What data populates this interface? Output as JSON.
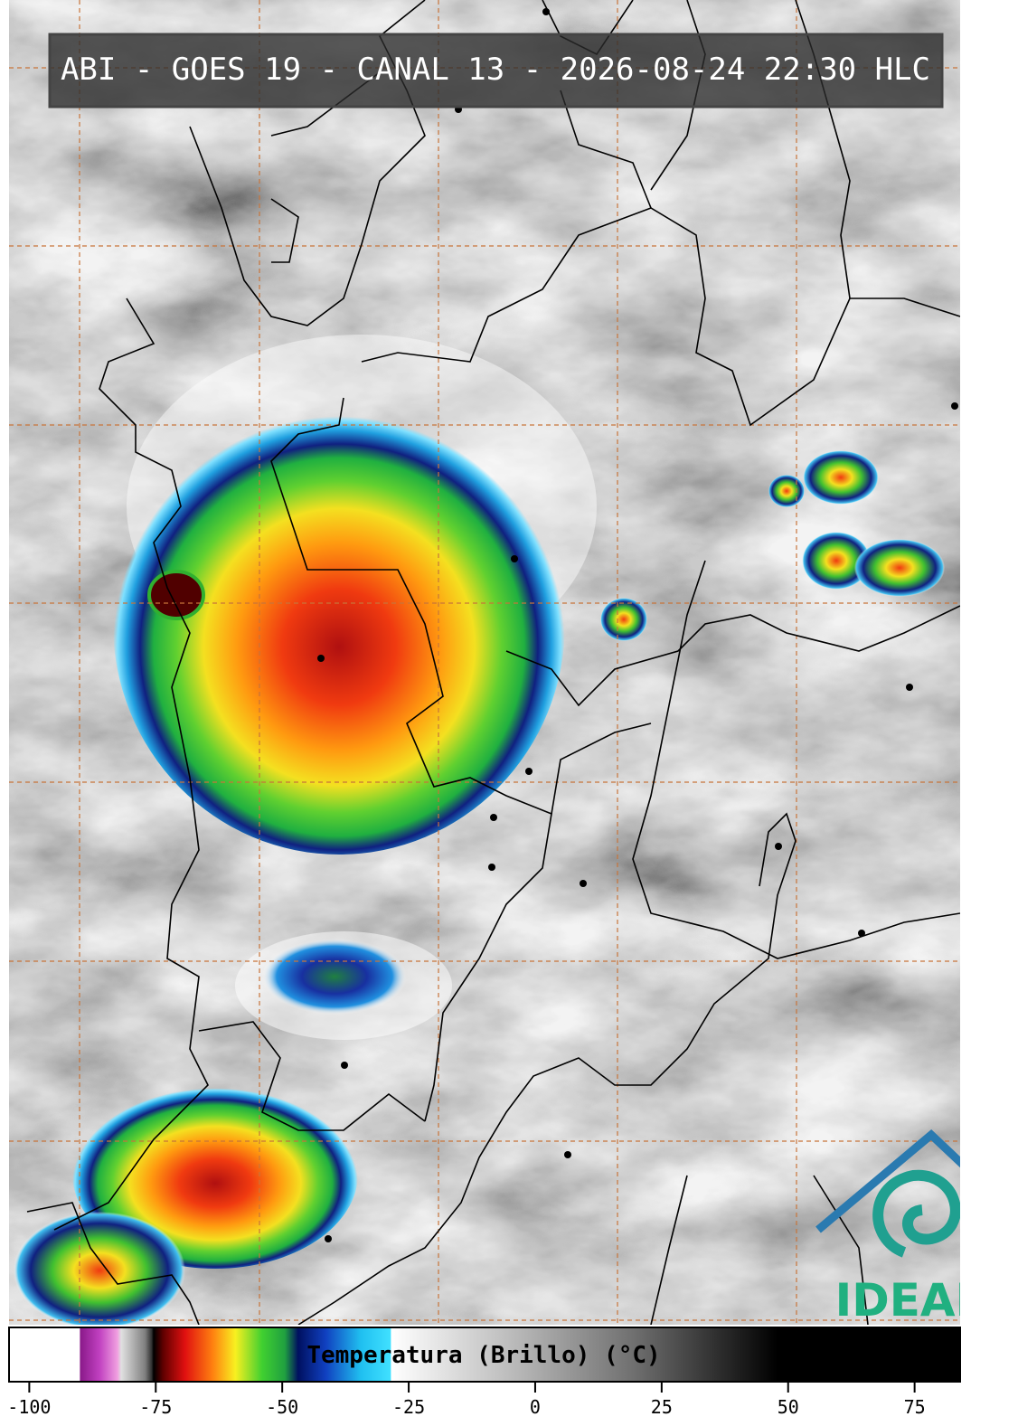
{
  "header": {
    "title": "ABI - GOES 19 - CANAL 13 - 2026-08-24 22:30 HLC"
  },
  "colorbar": {
    "label": "Temperatura (Brillo) (°C)",
    "xlim": [
      -104,
      84
    ],
    "xticks": [
      -100,
      -75,
      -50,
      -25,
      0,
      25,
      50,
      75
    ]
  },
  "logo": {
    "text": "IDEAM"
  }
}
